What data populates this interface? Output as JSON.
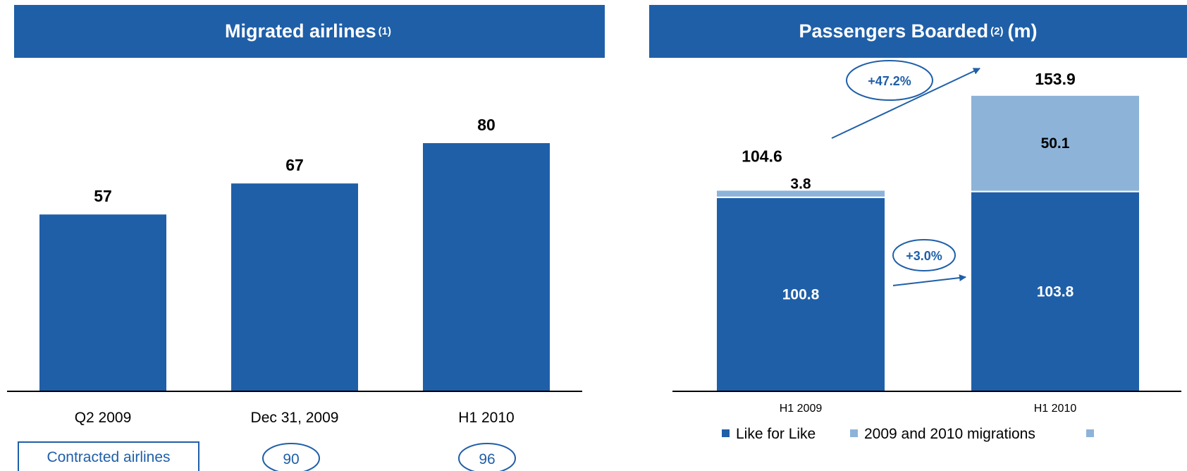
{
  "left_header": {
    "title": "Migrated airlines",
    "footnote": "(1)"
  },
  "right_header": {
    "title": "Passengers Boarded",
    "footnote": "(2)",
    "suffix": "(m)"
  },
  "contracted": {
    "label": "Contracted airlines",
    "values": [
      "90",
      "96"
    ]
  },
  "growth": {
    "total": "+47.2%",
    "like_for_like": "+3.0%"
  },
  "legend": {
    "items": [
      "Like for Like",
      "2009 and 2010 migrations",
      ""
    ]
  },
  "colors": {
    "primary": "#1f5fa8",
    "secondary": "#8db3d9"
  },
  "chart_data": [
    {
      "type": "bar",
      "title": "Migrated airlines (1)",
      "categories": [
        "Q2 2009",
        "Dec 31, 2009",
        "H1 2010"
      ],
      "values": [
        57,
        67,
        80
      ],
      "ylim": [
        0,
        90
      ],
      "grid": false,
      "legend": "none"
    },
    {
      "type": "bar",
      "stacked": true,
      "title": "Passengers Boarded (2) (m)",
      "categories": [
        "H1 2009",
        "H1 2010"
      ],
      "series": [
        {
          "name": "Like for Like",
          "values": [
            100.8,
            103.8
          ]
        },
        {
          "name": "2009 and 2010 migrations",
          "values": [
            3.8,
            50.1
          ]
        }
      ],
      "totals": [
        104.6,
        153.9
      ],
      "ylim": [
        0,
        160
      ],
      "grid": false,
      "legend": "bottom"
    }
  ]
}
